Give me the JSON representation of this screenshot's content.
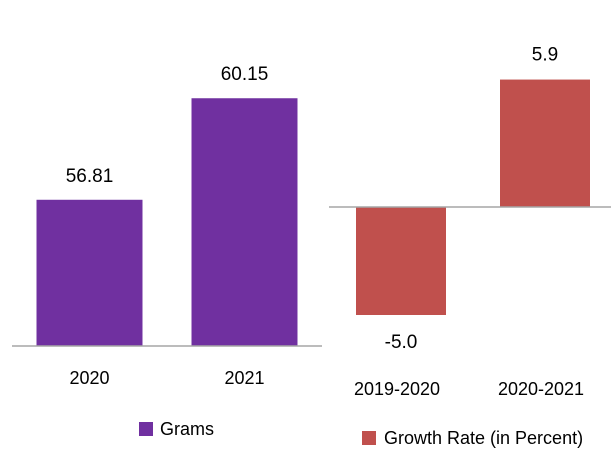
{
  "chart_data": [
    {
      "type": "bar",
      "categories": [
        "2020",
        "2021"
      ],
      "series": [
        {
          "name": "Grams",
          "values": [
            56.81,
            60.15
          ],
          "labels": [
            "56.81",
            "60.15"
          ]
        }
      ],
      "ylim": [
        52,
        62
      ],
      "grid": false,
      "legend": "bottom",
      "colors": {
        "bar": "#7030a0",
        "axis": "#a6a6a6"
      }
    },
    {
      "type": "bar",
      "categories": [
        "2019-2020",
        "2020-2021"
      ],
      "series": [
        {
          "name": "Growth Rate (in Percent)",
          "values": [
            -5.0,
            5.9
          ],
          "labels": [
            "-5.0",
            "5.9"
          ]
        }
      ],
      "ylim": [
        -12,
        12
      ],
      "grid": false,
      "legend": "bottom",
      "colors": {
        "bar": "#c0504d",
        "axis": "#a6a6a6"
      }
    }
  ]
}
